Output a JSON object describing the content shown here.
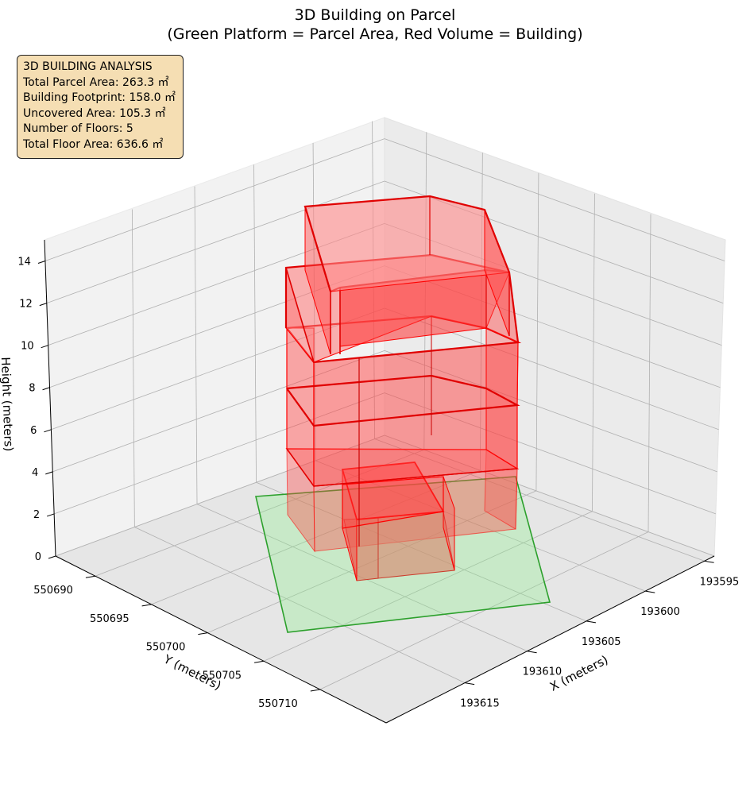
{
  "chart_data": {
    "type": "3d-volume",
    "title": "3D Building on Parcel",
    "subtitle": "(Green Platform = Parcel Area, Red Volume = Building)",
    "xlabel": "X (meters)",
    "ylabel": "Y (meters)",
    "zlabel": "Height (meters)",
    "x_ticks": [
      "193595",
      "193600",
      "193605",
      "193610",
      "193615"
    ],
    "y_ticks": [
      "550690",
      "550695",
      "550700",
      "550705",
      "550710"
    ],
    "z_ticks": [
      "0",
      "2",
      "4",
      "6",
      "8",
      "10",
      "12",
      "14"
    ],
    "zlim": [
      0,
      15
    ],
    "grid": true,
    "series": [
      {
        "name": "Green Platform = Parcel Area",
        "color": "#2ca02c",
        "fill": "#90ee90"
      },
      {
        "name": "Red Volume = Building",
        "color": "#ff0000",
        "fill": "#ff4444"
      }
    ],
    "floors": 5,
    "floor_height_m": 3,
    "building_height_m": 15
  },
  "info": {
    "heading": "3D BUILDING ANALYSIS",
    "total_parcel_area": "Total Parcel Area: 263.3 ㎡",
    "building_footprint": "Building Footprint: 158.0 ㎡",
    "uncovered_area": "Uncovered Area: 105.3 ㎡",
    "number_of_floors": "Number of Floors: 5",
    "total_floor_area": "Total Floor Area: 636.6 ㎡"
  }
}
